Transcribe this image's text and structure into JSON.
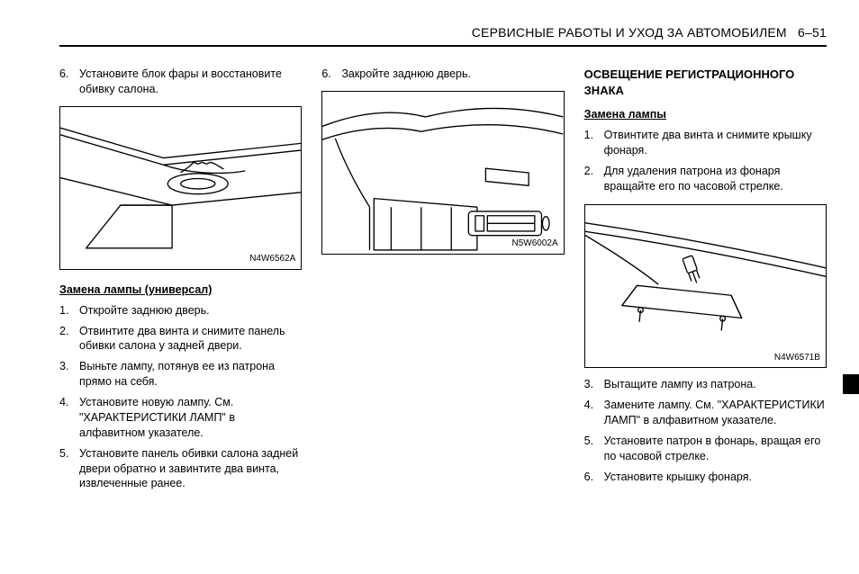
{
  "header": {
    "title": "СЕРВИСНЫЕ РАБОТЫ И УХОД ЗА АВТОМОБИЛЕМ",
    "page": "6–51"
  },
  "col1": {
    "topItem": {
      "num": "6.",
      "text": "Установите блок фары и восстановите обивку салона."
    },
    "fig1_tag": "N4W6562A",
    "subheading": "Замена лампы (универсал)",
    "steps": [
      {
        "num": "1.",
        "text": "Откройте заднюю дверь."
      },
      {
        "num": "2.",
        "text": "Отвинтите два винта и снимите панель обивки салона у задней двери."
      },
      {
        "num": "3.",
        "text": "Выньте лампу, потянув ее из патрона прямо на себя."
      },
      {
        "num": "4.",
        "text": "Установите новую лампу. См. \"ХАРАКТЕРИСТИКИ ЛАМП\" в алфавитном указателе."
      },
      {
        "num": "5.",
        "text": "Установите панель обивки салона задней двери обратно и завинтите два винта, извлеченные ранее."
      }
    ]
  },
  "col2": {
    "topItem": {
      "num": "6.",
      "text": "Закройте заднюю дверь."
    },
    "fig2_tag": "N5W6002A"
  },
  "col3": {
    "heading": "ОСВЕЩЕНИЕ РЕГИСТРАЦИОННОГО ЗНАКА",
    "subheading": "Замена лампы",
    "stepsA": [
      {
        "num": "1.",
        "text": "Отвинтите два винта и снимите крышку фонаря."
      },
      {
        "num": "2.",
        "text": "Для удаления патрона из фонаря вращайте его по часовой стрелке."
      }
    ],
    "fig3_tag": "N4W6571B",
    "stepsB": [
      {
        "num": "3.",
        "text": "Вытащите лампу из патрона."
      },
      {
        "num": "4.",
        "text": "Замените лампу. См. \"ХАРАКТЕРИСТИКИ ЛАМП\" в алфавитном указателе."
      },
      {
        "num": "5.",
        "text": "Установите патрон в фонарь, вращая его по часовой стрелке."
      },
      {
        "num": "6.",
        "text": "Установите крышку фонаря."
      }
    ]
  },
  "colors": {
    "fg": "#000000",
    "bg": "#ffffff"
  }
}
